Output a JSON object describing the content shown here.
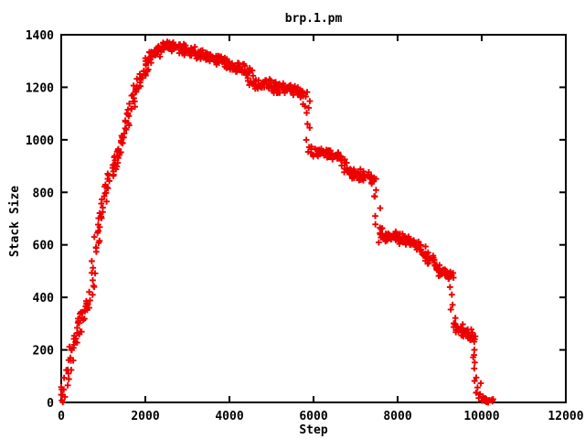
{
  "chart_data": {
    "type": "scatter",
    "title": "brp.1.pm",
    "xlabel": "Step",
    "ylabel": "Stack Size",
    "xlim": [
      0,
      12000
    ],
    "ylim": [
      0,
      1400
    ],
    "xticks": [
      0,
      2000,
      4000,
      6000,
      8000,
      10000,
      12000
    ],
    "yticks": [
      0,
      200,
      400,
      600,
      800,
      1000,
      1200,
      1400
    ],
    "grid": false,
    "legend": "none",
    "marker": "plus",
    "series_color": "#ee0000",
    "frame_color": "#000000",
    "background": "#ffffff",
    "noise": {
      "x_step": 12,
      "x_jitter": 80,
      "y_jitter": 18,
      "seed": 42
    },
    "trend_points": [
      [
        0,
        0
      ],
      [
        100,
        70
      ],
      [
        270,
        200
      ],
      [
        500,
        320
      ],
      [
        680,
        400
      ],
      [
        760,
        500
      ],
      [
        820,
        600
      ],
      [
        940,
        700
      ],
      [
        1060,
        800
      ],
      [
        1250,
        900
      ],
      [
        1460,
        1000
      ],
      [
        1630,
        1100
      ],
      [
        1800,
        1200
      ],
      [
        1950,
        1260
      ],
      [
        2070,
        1300
      ],
      [
        2250,
        1335
      ],
      [
        2400,
        1350
      ],
      [
        2500,
        1358
      ],
      [
        2600,
        1360
      ],
      [
        2750,
        1352
      ],
      [
        2900,
        1345
      ],
      [
        3100,
        1335
      ],
      [
        3300,
        1322
      ],
      [
        3500,
        1315
      ],
      [
        3700,
        1305
      ],
      [
        3900,
        1290
      ],
      [
        4100,
        1278
      ],
      [
        4300,
        1268
      ],
      [
        4450,
        1258
      ],
      [
        4520,
        1230
      ],
      [
        4600,
        1210
      ],
      [
        4750,
        1205
      ],
      [
        4900,
        1212
      ],
      [
        5050,
        1205
      ],
      [
        5200,
        1198
      ],
      [
        5350,
        1200
      ],
      [
        5500,
        1190
      ],
      [
        5650,
        1183
      ],
      [
        5800,
        1175
      ],
      [
        5860,
        1120
      ],
      [
        5890,
        1040
      ],
      [
        5920,
        965
      ],
      [
        6000,
        948
      ],
      [
        6150,
        955
      ],
      [
        6300,
        950
      ],
      [
        6450,
        945
      ],
      [
        6600,
        938
      ],
      [
        6700,
        915
      ],
      [
        6780,
        885
      ],
      [
        6900,
        872
      ],
      [
        7050,
        868
      ],
      [
        7200,
        862
      ],
      [
        7350,
        858
      ],
      [
        7450,
        848
      ],
      [
        7500,
        780
      ],
      [
        7530,
        700
      ],
      [
        7560,
        645
      ],
      [
        7650,
        628
      ],
      [
        7800,
        622
      ],
      [
        7950,
        630
      ],
      [
        8100,
        625
      ],
      [
        8250,
        618
      ],
      [
        8400,
        598
      ],
      [
        8550,
        578
      ],
      [
        8700,
        560
      ],
      [
        8800,
        542
      ],
      [
        8900,
        515
      ],
      [
        9050,
        502
      ],
      [
        9200,
        490
      ],
      [
        9280,
        475
      ],
      [
        9310,
        420
      ],
      [
        9340,
        340
      ],
      [
        9370,
        295
      ],
      [
        9450,
        278
      ],
      [
        9600,
        268
      ],
      [
        9750,
        255
      ],
      [
        9820,
        235
      ],
      [
        9860,
        170
      ],
      [
        9900,
        95
      ],
      [
        9940,
        45
      ],
      [
        9990,
        25
      ],
      [
        10080,
        12
      ],
      [
        10180,
        4
      ],
      [
        10240,
        0
      ]
    ]
  }
}
